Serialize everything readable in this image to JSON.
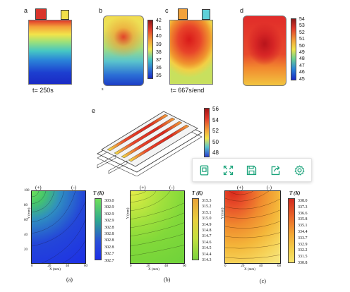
{
  "figure": {
    "panels_top": {
      "a": {
        "letter": "a",
        "time": "t= 250s"
      },
      "b": {
        "letter": "b"
      },
      "c": {
        "letter": "c",
        "time": "t= 667s/end"
      },
      "d": {
        "letter": "d"
      },
      "e": {
        "letter": "e"
      }
    },
    "colorbar_ab": [
      "42",
      "41",
      "40",
      "39",
      "38",
      "37",
      "36",
      "35"
    ],
    "colorbar_cd": [
      "54",
      "53",
      "52",
      "51",
      "50",
      "49",
      "48",
      "47",
      "46",
      "45"
    ],
    "colorbar_e": [
      "56",
      "54",
      "52",
      "50",
      "48"
    ],
    "small_mark": "s",
    "contour_plots": [
      {
        "pos_label": "(+)",
        "neg_label": "(-)",
        "t_label": "T (K)",
        "colorbar": [
          "303.0",
          "302.9",
          "302.9",
          "302.9",
          "302.8",
          "302.8",
          "302.8",
          "302.8",
          "302.7",
          "302.7"
        ],
        "caption": "(a)"
      },
      {
        "pos_label": "(+)",
        "neg_label": "(-)",
        "t_label": "T (K)",
        "colorbar": [
          "315.3",
          "315.2",
          "315.1",
          "315.0",
          "314.9",
          "314.8",
          "314.7",
          "314.6",
          "314.5",
          "314.4",
          "314.3"
        ],
        "caption": "(b)"
      },
      {
        "pos_label": "(+)",
        "neg_label": "(-)",
        "t_label": "T (K)",
        "colorbar": [
          "338.0",
          "337.3",
          "336.6",
          "335.8",
          "335.1",
          "334.4",
          "333.7",
          "332.9",
          "332.2",
          "331.5",
          "330.8"
        ],
        "caption": "(c)"
      }
    ],
    "x_ticks": [
      "0",
      "20",
      "40",
      "60"
    ],
    "y_ticks": [
      "100",
      "80",
      "60",
      "40",
      "20",
      "0"
    ],
    "x_axis_label": "X (mm)",
    "y_axis_label": "Y (mm)"
  },
  "toolbar": {
    "buttons": [
      {
        "name": "view-original-icon"
      },
      {
        "name": "expand-icon"
      },
      {
        "name": "save-icon"
      },
      {
        "name": "share-icon"
      },
      {
        "name": "settings-icon"
      }
    ],
    "accent": "#1aa37a"
  }
}
